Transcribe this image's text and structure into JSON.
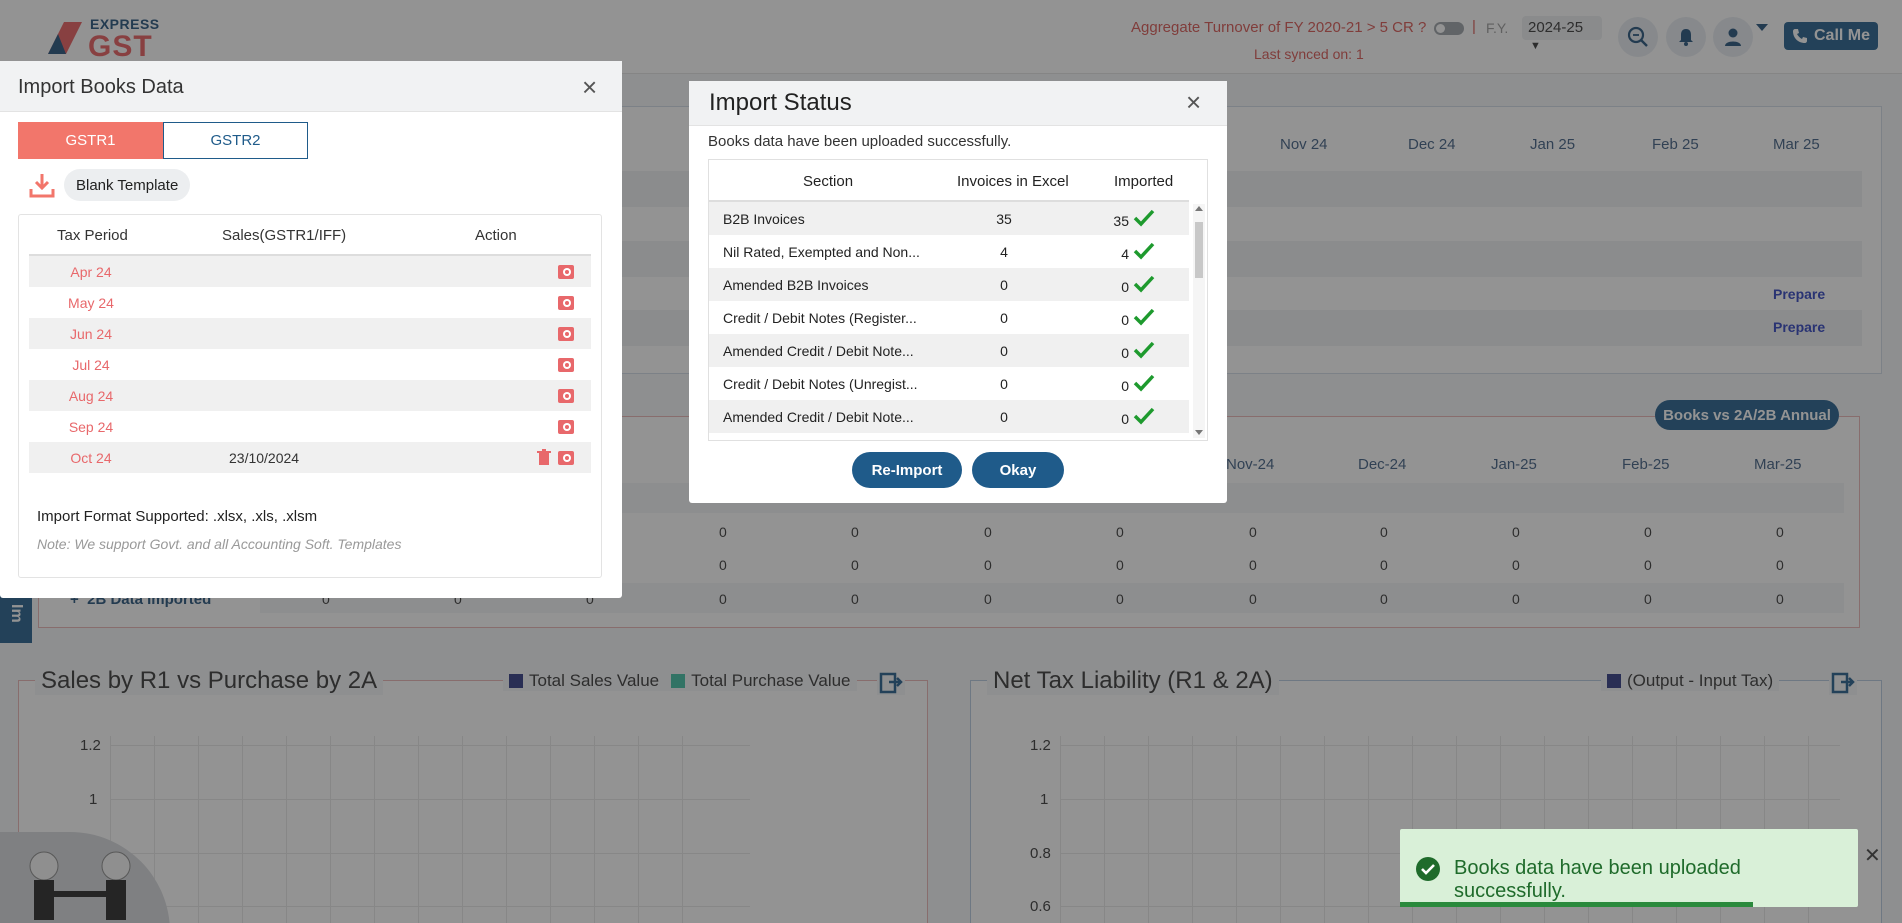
{
  "header": {
    "logo_top": "EXPRESS",
    "logo_bottom": "GST",
    "turnover_text": "Aggregate Turnover of FY 2020-21 > 5 CR ?",
    "separator": "|",
    "fy_label": "F.Y.",
    "fy_value": "2024-25",
    "last_synced": "Last synced on: 1",
    "call_me": "Call Me"
  },
  "returns_card": {
    "months": [
      "Nov 24",
      "Dec 24",
      "Jan 25",
      "Feb 25",
      "Mar 25"
    ],
    "prepare_label": "Prepare"
  },
  "books_vs": {
    "badge": "Books vs 2A/2B Annual",
    "months": [
      "Nov-24",
      "Dec-24",
      "Jan-25",
      "Feb-25",
      "Mar-25"
    ],
    "zero": "0",
    "row_label": "2B Data Imported",
    "side_tab": "Im"
  },
  "charts": {
    "left_title": "Sales by R1 vs Purchase by 2A",
    "left_legend": [
      "Total Sales Value",
      "Total Purchase Value"
    ],
    "right_title": "Net Tax Liability (R1 & 2A)",
    "right_legend": [
      "(Output - Input Tax)"
    ],
    "y_ticks": [
      "1.2",
      "1",
      "0.8",
      "0.6"
    ],
    "colors": {
      "sales": "#2a3580",
      "purchase": "#3dbfa3",
      "net": "#2a3580"
    }
  },
  "import_books": {
    "title": "Import Books Data",
    "tabs": [
      "GSTR1",
      "GSTR2"
    ],
    "active_tab": "GSTR1",
    "blank_template": "Blank Template",
    "columns": [
      "Tax Period",
      "Sales(GSTR1/IFF)",
      "Action"
    ],
    "rows": [
      {
        "period": "Apr 24",
        "sales": ""
      },
      {
        "period": "May 24",
        "sales": ""
      },
      {
        "period": "Jun 24",
        "sales": ""
      },
      {
        "period": "Jul 24",
        "sales": ""
      },
      {
        "period": "Aug 24",
        "sales": ""
      },
      {
        "period": "Sep 24",
        "sales": ""
      },
      {
        "period": "Oct 24",
        "sales": "23/10/2024"
      }
    ],
    "format_supported": "Import Format Supported: .xlsx, .xls, .xlsm",
    "note": "Note: We support Govt. and all Accounting Soft. Templates"
  },
  "import_status": {
    "title": "Import Status",
    "message": "Books data have been uploaded successfully.",
    "columns": [
      "Section",
      "Invoices in Excel",
      "Imported"
    ],
    "rows": [
      {
        "section": "B2B Invoices",
        "excel": "35",
        "imported": "35"
      },
      {
        "section": "Nil Rated, Exempted and Non...",
        "excel": "4",
        "imported": "4"
      },
      {
        "section": "Amended B2B Invoices",
        "excel": "0",
        "imported": "0"
      },
      {
        "section": "Credit / Debit Notes (Register...",
        "excel": "0",
        "imported": "0"
      },
      {
        "section": "Amended Credit / Debit Note...",
        "excel": "0",
        "imported": "0"
      },
      {
        "section": "Credit / Debit Notes (Unregist...",
        "excel": "0",
        "imported": "0"
      },
      {
        "section": "Amended Credit / Debit Note...",
        "excel": "0",
        "imported": "0"
      }
    ],
    "reimport_label": "Re-Import",
    "okay_label": "Okay"
  },
  "toast": {
    "message": "Books data have been uploaded successfully.",
    "progress": 0.77
  },
  "colors": {
    "brand_blue": "#1f5b8a",
    "accent_red": "#f2766b",
    "success_green": "#2a8a3c"
  }
}
